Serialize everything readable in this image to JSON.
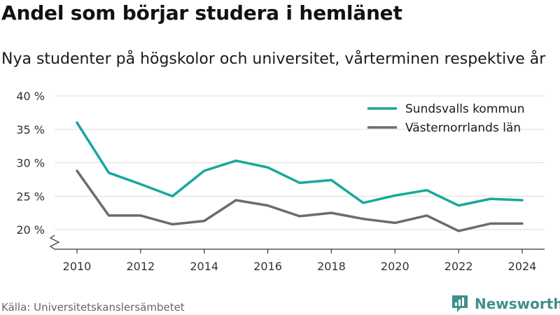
{
  "title": "Andel som börjar studera i hemlänet",
  "subtitle": "Nya studenter på högskolor och universitet, vårterminen respektive år",
  "source": "Källa: Universitetskanslersämbetet",
  "brand": {
    "name": "Newsworthy",
    "icon": "newsworthy-logo-icon",
    "color": "#3f8f8b"
  },
  "chart_data": {
    "type": "line",
    "x": [
      2010,
      2011,
      2012,
      2013,
      2014,
      2015,
      2016,
      2017,
      2018,
      2019,
      2020,
      2021,
      2022,
      2023,
      2024
    ],
    "x_ticks": [
      2010,
      2012,
      2014,
      2016,
      2018,
      2020,
      2022,
      2024
    ],
    "y_ticks": [
      20,
      25,
      30,
      35,
      40
    ],
    "y_tick_labels": [
      "20 %",
      "25 %",
      "30 %",
      "35 %",
      "40 %"
    ],
    "ylim": [
      17,
      40
    ],
    "grid": true,
    "axis_break": true,
    "legend_position": "top-right",
    "series": [
      {
        "name": "Sundsvalls kommun",
        "color": "#16a89b",
        "values": [
          36.0,
          28.5,
          26.8,
          25.0,
          28.8,
          30.3,
          29.3,
          27.0,
          27.4,
          24.0,
          25.1,
          25.9,
          23.6,
          24.6,
          24.4
        ]
      },
      {
        "name": "Västernorrlands län",
        "color": "#6b6b70",
        "values": [
          28.8,
          22.1,
          22.1,
          20.8,
          21.3,
          24.4,
          23.6,
          22.0,
          22.5,
          21.6,
          21.0,
          22.1,
          19.8,
          20.9,
          20.9
        ]
      }
    ]
  }
}
